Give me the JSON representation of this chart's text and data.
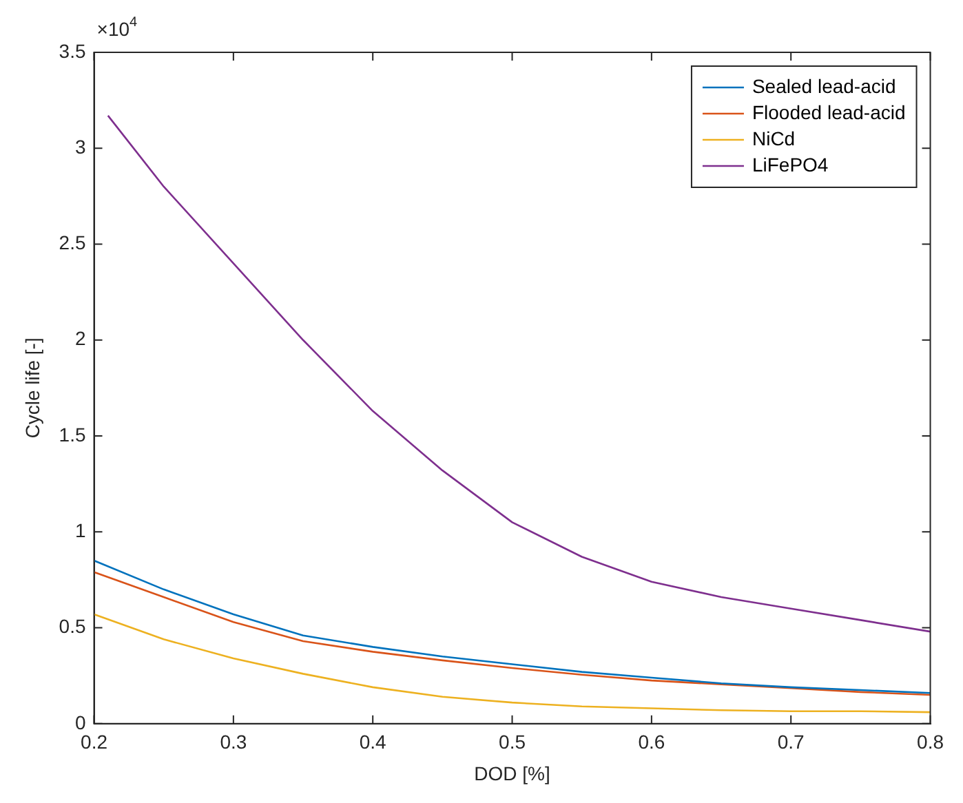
{
  "chart_data": {
    "type": "line",
    "xlabel": "DOD [%]",
    "ylabel": "Cycle life [-]",
    "annotations": [
      "×10$^{4}$"
    ],
    "x": [
      0.2,
      0.25,
      0.3,
      0.35,
      0.4,
      0.45,
      0.5,
      0.55,
      0.6,
      0.65,
      0.7,
      0.75,
      0.8
    ],
    "series": [
      {
        "name": "Sealed lead-acid",
        "color": "#0072bd",
        "values": [
          0.85,
          0.7,
          0.57,
          0.46,
          0.4,
          0.35,
          0.31,
          0.27,
          0.24,
          0.21,
          0.19,
          0.175,
          0.16
        ]
      },
      {
        "name": "Flooded lead-acid",
        "color": "#d95319",
        "values": [
          0.79,
          0.66,
          0.53,
          0.43,
          0.375,
          0.33,
          0.29,
          0.255,
          0.225,
          0.205,
          0.185,
          0.165,
          0.15
        ]
      },
      {
        "name": "NiCd",
        "color": "#edb120",
        "values": [
          0.57,
          0.44,
          0.34,
          0.26,
          0.19,
          0.14,
          0.11,
          0.09,
          0.08,
          0.07,
          0.065,
          0.065,
          0.06
        ]
      },
      {
        "name": "LiFePO4",
        "color": "#7e2f8e",
        "x": [
          0.21,
          0.25,
          0.3,
          0.35,
          0.4,
          0.45,
          0.5,
          0.55,
          0.6,
          0.65,
          0.7,
          0.75,
          0.8
        ],
        "values": [
          3.17,
          2.8,
          2.4,
          2.0,
          1.63,
          1.32,
          1.05,
          0.87,
          0.74,
          0.66,
          0.6,
          0.54,
          0.48
        ]
      }
    ],
    "xlim": [
      0.2,
      0.8
    ],
    "xticks": [
      0.2,
      0.3,
      0.4,
      0.5,
      0.6,
      0.7,
      0.8
    ],
    "ylim": [
      0,
      3.5
    ],
    "yticks": [
      0,
      0.5,
      1,
      1.5,
      2,
      2.5,
      3,
      3.5
    ],
    "grid": false,
    "legend": "top right",
    "marker": "none",
    "line_style": "solid"
  }
}
